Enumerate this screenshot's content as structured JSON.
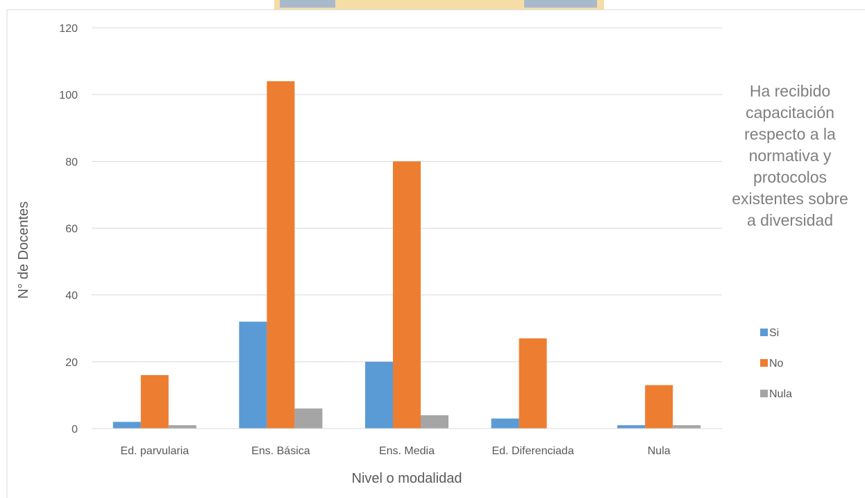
{
  "chart_data": {
    "type": "bar",
    "title": "Ha recibido capacitación respecto a la normativa y protocolos existentes sobre a diversidad",
    "xlabel": "Nivel o modalidad",
    "ylabel": "N° de Docentes",
    "ylim": [
      0,
      120
    ],
    "yticks": [
      0,
      20,
      40,
      60,
      80,
      100,
      120
    ],
    "grid": true,
    "legend_position": "right",
    "categories": [
      "Ed. parvularia",
      "Ens. Básica",
      "Ens. Media",
      "Ed. Diferenciada",
      "Nula"
    ],
    "series": [
      {
        "name": "Si",
        "color": "#5b9bd5",
        "values": [
          2,
          32,
          20,
          3,
          1
        ]
      },
      {
        "name": "No",
        "color": "#ed7d31",
        "values": [
          16,
          104,
          80,
          27,
          13
        ]
      },
      {
        "name": "Nula",
        "color": "#a5a5a5",
        "values": [
          1,
          6,
          4,
          0,
          1
        ]
      }
    ]
  }
}
